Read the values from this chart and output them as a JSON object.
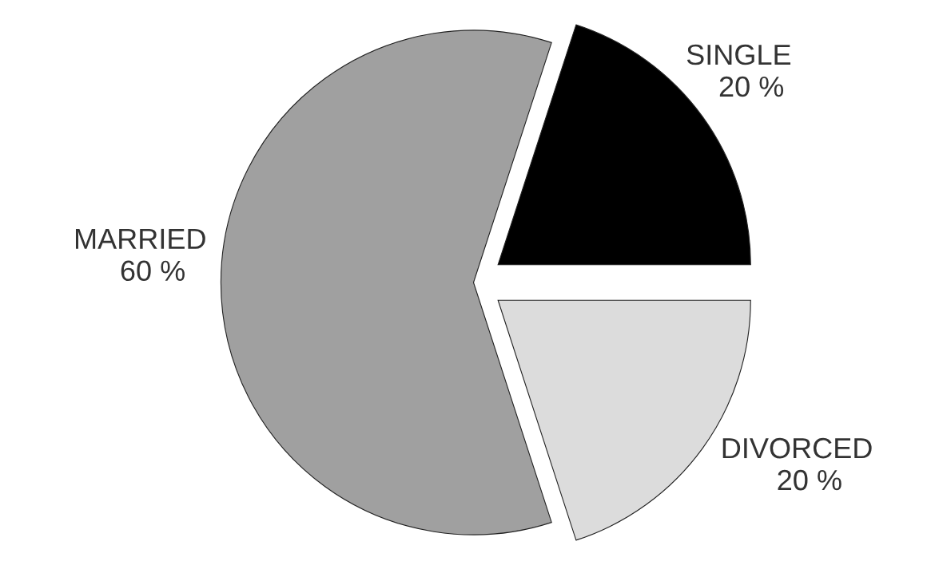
{
  "chart_data": {
    "type": "pie",
    "categories": [
      "SINGLE",
      "MARRIED",
      "DIVORCED"
    ],
    "values": [
      20,
      60,
      20
    ],
    "colors": [
      "#000000",
      "#a0a0a0",
      "#dcdcdc"
    ],
    "value_labels": [
      "20 %",
      "60 %",
      "20 %"
    ]
  }
}
